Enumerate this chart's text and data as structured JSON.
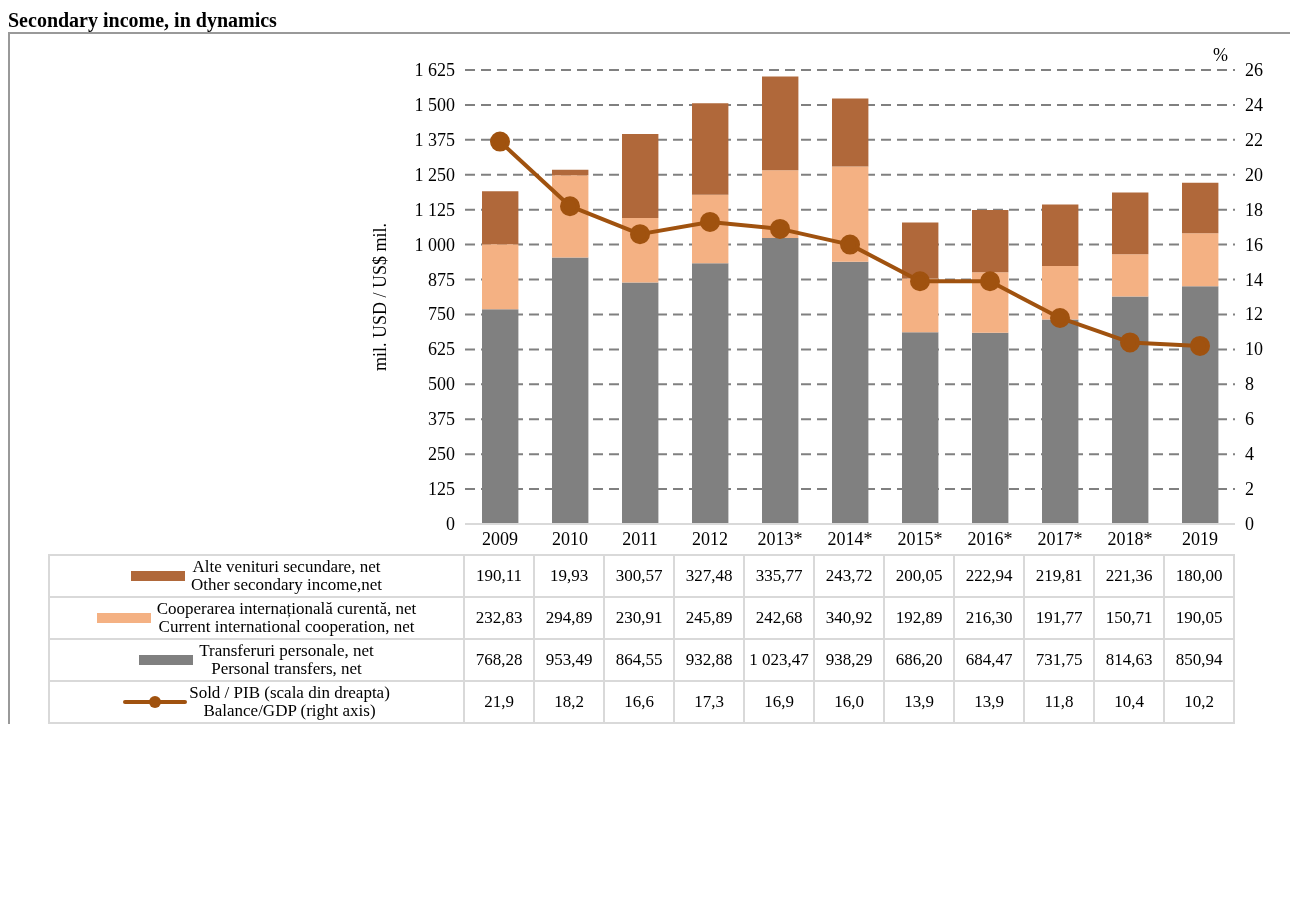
{
  "chart_data": {
    "type": "bar",
    "title": "Secondary income, in dynamics",
    "ylabel": "mil. USD /  US$ mil.",
    "y2label": "%",
    "categories": [
      "2009",
      "2010",
      "2011",
      "2012",
      "2013*",
      "2014*",
      "2015*",
      "2016*",
      "2017*",
      "2018*",
      "2019"
    ],
    "stacked": true,
    "grid": "y",
    "legend": "bottom left",
    "marker": "circle",
    "line_style": "solid",
    "ylim": [
      0,
      1625
    ],
    "yticks": [
      0,
      125,
      250,
      375,
      500,
      625,
      750,
      875,
      {
        "value": 1000,
        "label": "1 000"
      },
      {
        "value": 1125,
        "label": "1 125"
      },
      {
        "value": 1250,
        "label": "1 250"
      },
      {
        "value": 1375,
        "label": "1 375"
      },
      {
        "value": 1500,
        "label": "1 500"
      },
      {
        "value": 1625,
        "label": "1 625"
      }
    ],
    "y2lim": [
      0,
      26
    ],
    "y2ticks": [
      0,
      2,
      4,
      6,
      8,
      10,
      12,
      14,
      16,
      18,
      20,
      22,
      24,
      26
    ],
    "series": [
      {
        "name": "Transferuri personale, net\nPersonal transfers, net",
        "color": "#808080",
        "values": [
          768.28,
          953.49,
          864.55,
          932.88,
          1023.47,
          938.29,
          686.2,
          684.47,
          731.75,
          814.63,
          850.94
        ],
        "value_labels": [
          "768,28",
          "953,49",
          "864,55",
          "932,88",
          "1 023,47",
          "938,29",
          "686,20",
          "684,47",
          "731,75",
          "814,63",
          "850,94"
        ]
      },
      {
        "name": "Cooperarea internațională curentă, net\nCurrent international cooperation, net",
        "color": "#f4b183",
        "values": [
          232.83,
          294.89,
          230.91,
          245.89,
          242.68,
          340.92,
          192.89,
          216.3,
          191.77,
          150.71,
          190.05
        ],
        "value_labels": [
          "232,83",
          "294,89",
          "230,91",
          "245,89",
          "242,68",
          "340,92",
          "192,89",
          "216,30",
          "191,77",
          "150,71",
          "190,05"
        ]
      },
      {
        "name": "Alte venituri secundare, net\nOther secondary income,net",
        "color": "#b0683a",
        "values": [
          190.11,
          19.93,
          300.57,
          327.48,
          335.77,
          243.72,
          200.05,
          222.94,
          219.81,
          221.36,
          180.0
        ],
        "value_labels": [
          "190,11",
          "19,93",
          "300,57",
          "327,48",
          "335,77",
          "243,72",
          "200,05",
          "222,94",
          "219,81",
          "221,36",
          "180,00"
        ]
      },
      {
        "name": "Sold / PIB (scala din dreapta)\nBalance/GDP (right axis)",
        "type": "line",
        "axis": "y2",
        "color": "#a0520f",
        "values": [
          21.9,
          18.2,
          16.6,
          17.3,
          16.9,
          16.0,
          13.9,
          13.9,
          11.8,
          10.4,
          10.2
        ],
        "value_labels": [
          "21,9",
          "18,2",
          "16,6",
          "17,3",
          "16,9",
          "16,0",
          "13,9",
          "13,9",
          "11,8",
          "10,4",
          "10,2"
        ]
      }
    ]
  }
}
